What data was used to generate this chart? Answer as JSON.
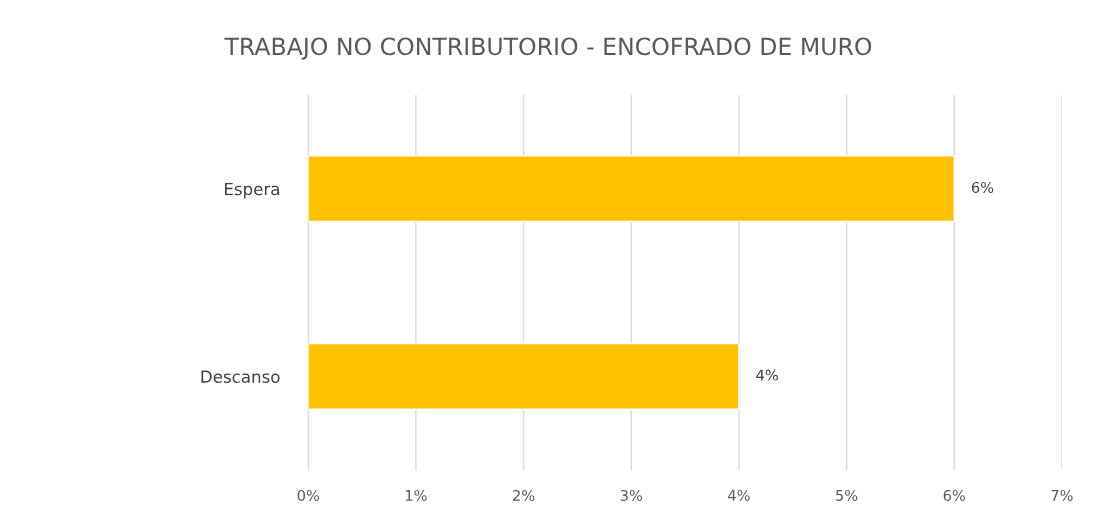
{
  "chart_data": {
    "type": "bar",
    "orientation": "horizontal",
    "title": "TRABAJO NO CONTRIBUTORIO - ENCOFRADO DE MURO",
    "categories": [
      "Espera",
      "Descanso"
    ],
    "values": [
      6,
      4
    ],
    "color": "#ffc000",
    "value_labels": [
      "6%",
      "4%"
    ],
    "xlim": [
      0,
      7
    ],
    "xticks": [
      {
        "value": 0,
        "label": "0%"
      },
      {
        "value": 1,
        "label": "1%"
      },
      {
        "value": 2,
        "label": "2%"
      },
      {
        "value": 3,
        "label": "3%"
      },
      {
        "value": 4,
        "label": "4%"
      },
      {
        "value": 5,
        "label": "5%"
      },
      {
        "value": 6,
        "label": "6%"
      },
      {
        "value": 7,
        "label": "7%"
      }
    ],
    "grid": "x",
    "legend": false
  }
}
